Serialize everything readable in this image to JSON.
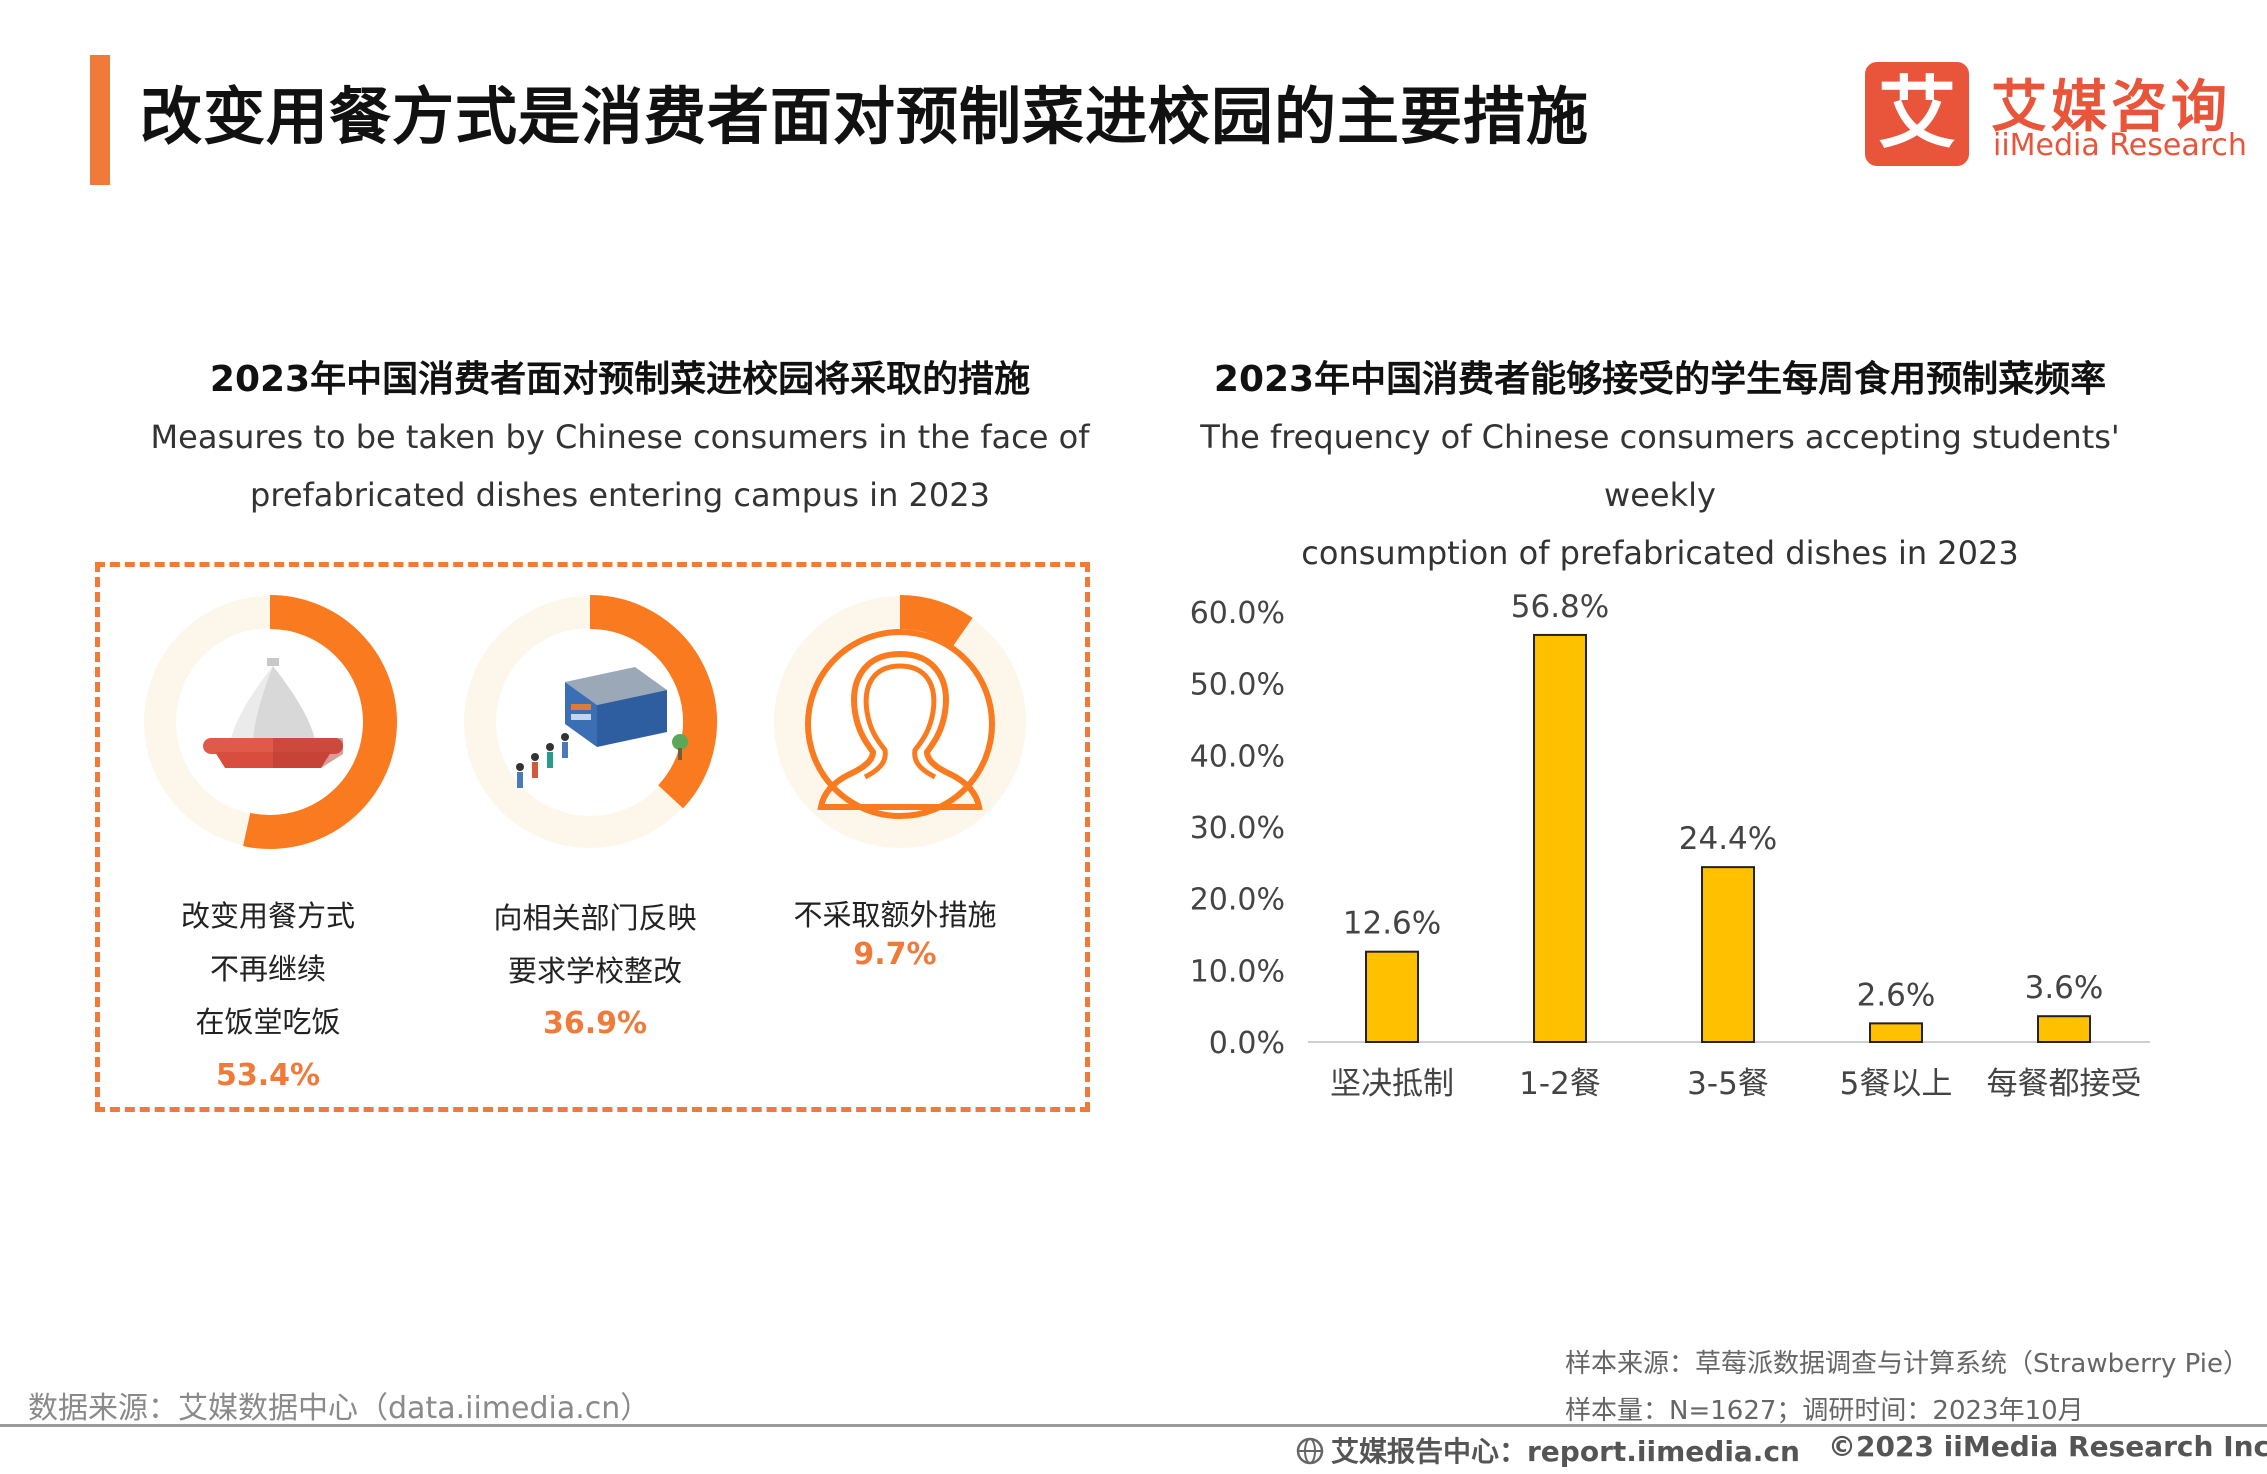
{
  "header": {
    "title": "改变用餐方式是消费者面对预制菜进校园的主要措施",
    "logo_icon_char": "艾",
    "logo_cn": "艾媒咨询",
    "logo_en": "iiMedia Research",
    "accent_color": "#f07a3a"
  },
  "left_panel": {
    "title_cn": "2023年中国消费者面对预制菜进校园将采取的措施",
    "title_en_line1": "Measures to be taken by Chinese consumers in the face of",
    "title_en_line2": "prefabricated dishes entering campus in 2023",
    "items": [
      {
        "label_lines": [
          "改变用餐方式",
          "不再继续",
          "在饭堂吃饭"
        ],
        "value": 53.4,
        "value_label": "53.4%",
        "icon": "serving-cloche-icon"
      },
      {
        "label_lines": [
          "向相关部门反映",
          "要求学校整改"
        ],
        "value": 36.9,
        "value_label": "36.9%",
        "icon": "school-building-queue-icon"
      },
      {
        "label_lines": [
          "不采取额外措施"
        ],
        "value": 9.7,
        "value_label": "9.7%",
        "icon": "person-silhouette-icon"
      }
    ]
  },
  "chart_data": {
    "type": "bar",
    "title": "2023年中国消费者能够接受的学生每周食用预制菜频率",
    "subtitle": "The frequency of Chinese consumers accepting students' weekly consumption of prefabricated dishes in 2023",
    "subtitle_line1": "The frequency of Chinese consumers accepting students' weekly",
    "subtitle_line2": "consumption of prefabricated dishes in 2023",
    "categories": [
      "坚决抵制",
      "1-2餐",
      "3-5餐",
      "5餐以上",
      "每餐都接受"
    ],
    "values": [
      12.6,
      56.8,
      24.4,
      2.6,
      3.6
    ],
    "value_labels": [
      "12.6%",
      "56.8%",
      "24.4%",
      "2.6%",
      "3.6%"
    ],
    "yticks": [
      "0.0%",
      "10.0%",
      "20.0%",
      "30.0%",
      "40.0%",
      "50.0%",
      "60.0%"
    ],
    "ylim": [
      0,
      60
    ],
    "bar_color": "#ffc000",
    "grid": false
  },
  "footer": {
    "data_source": "数据来源：艾媒数据中心（data.iimedia.cn）",
    "sample_source": "样本来源：草莓派数据调查与计算系统（Strawberry Pie）",
    "sample_size": "样本量：N=1627；调研时间：2023年10月",
    "report_center": "艾媒报告中心：report.iimedia.cn",
    "copyright": "©2023  iiMedia Research  Inc"
  }
}
